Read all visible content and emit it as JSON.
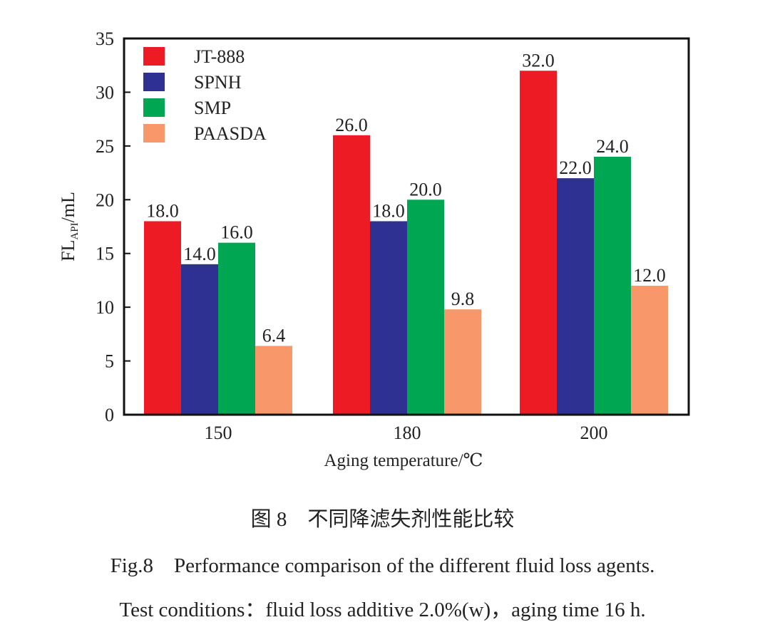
{
  "chart_data": {
    "type": "bar",
    "categories": [
      "150",
      "180",
      "200"
    ],
    "series": [
      {
        "name": "JT-888",
        "color": "#ed1c24",
        "values": [
          18.0,
          26.0,
          32.0
        ]
      },
      {
        "name": "SPNH",
        "color": "#2e3192",
        "values": [
          14.0,
          18.0,
          22.0
        ]
      },
      {
        "name": "SMP",
        "color": "#00a651",
        "values": [
          16.0,
          20.0,
          24.0
        ]
      },
      {
        "name": "PAASDA",
        "color": "#f7976a",
        "values": [
          6.4,
          9.8,
          12.0
        ]
      }
    ],
    "data_labels": [
      [
        "18.0",
        "26.0",
        "32.0"
      ],
      [
        "14.0",
        "18.0",
        "22.0"
      ],
      [
        "16.0",
        "20.0",
        "24.0"
      ],
      [
        "6.4",
        "9.8",
        "12.0"
      ]
    ],
    "xlabel": "Aging temperature/℃",
    "ylabel_main": "FL",
    "ylabel_sub": "API",
    "ylabel_unit": "/mL",
    "ylim": [
      0,
      35
    ],
    "yticks": [
      0,
      5,
      10,
      15,
      20,
      25,
      30,
      35
    ],
    "legend_placement": "top-left",
    "grid": false
  },
  "caption": {
    "cn": "图 8　不同降滤失剂性能比较",
    "en": "Fig.8　Performance comparison of the different fluid loss agents.",
    "note": "Test conditions：fluid loss additive 2.0%(w)，aging time 16 h."
  }
}
